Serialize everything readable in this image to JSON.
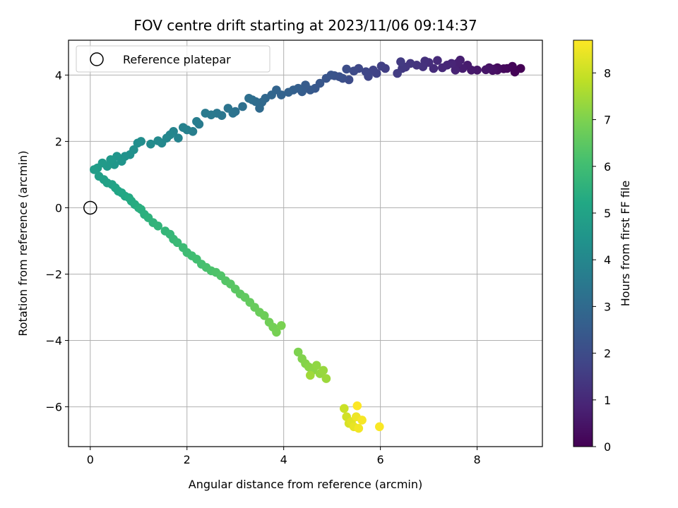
{
  "chart_data": {
    "type": "scatter",
    "title": "FOV centre drift starting at 2023/11/06 09:14:37",
    "xlabel": "Angular distance from reference (arcmin)",
    "ylabel": "Rotation from reference (arcmin)",
    "xlim": [
      -0.45,
      9.35
    ],
    "ylim": [
      -7.2,
      5.05
    ],
    "xticks": [
      0,
      2,
      4,
      6,
      8
    ],
    "yticks": [
      -6,
      -4,
      -2,
      0,
      2,
      4
    ],
    "grid": true,
    "legend": {
      "placement": "upper-left",
      "entries": [
        "Reference platepar"
      ]
    },
    "reference_point": {
      "x": 0,
      "y": 0,
      "label": "Reference platepar"
    },
    "colorbar": {
      "label": "Hours from first FF file",
      "colormap": "viridis",
      "range": [
        0,
        8.7
      ],
      "ticks": [
        0,
        1,
        2,
        3,
        4,
        5,
        6,
        7,
        8
      ]
    },
    "series": [
      {
        "points": [
          [
            8.9,
            4.2,
            0.0
          ],
          [
            8.78,
            4.09,
            0.05
          ],
          [
            8.73,
            4.26,
            0.1
          ],
          [
            8.62,
            4.2,
            0.15
          ],
          [
            8.55,
            4.19,
            0.2
          ],
          [
            8.42,
            4.22,
            0.25
          ],
          [
            8.42,
            4.15,
            0.3
          ],
          [
            8.35,
            4.18,
            0.35
          ],
          [
            8.32,
            4.14,
            0.4
          ],
          [
            8.25,
            4.22,
            0.45
          ],
          [
            8.18,
            4.16,
            0.5
          ],
          [
            8.0,
            4.15,
            0.55
          ],
          [
            7.88,
            4.15,
            0.6
          ],
          [
            7.8,
            4.3,
            0.65
          ],
          [
            7.7,
            4.2,
            0.7
          ],
          [
            7.65,
            4.45,
            0.75
          ],
          [
            7.6,
            4.36,
            0.8
          ],
          [
            7.55,
            4.15,
            0.85
          ],
          [
            7.47,
            4.35,
            0.9
          ],
          [
            7.38,
            4.3,
            0.95
          ],
          [
            7.28,
            4.22,
            1.0
          ],
          [
            7.18,
            4.44,
            1.05
          ],
          [
            7.1,
            4.2,
            1.1
          ],
          [
            7.0,
            4.38,
            1.15
          ],
          [
            6.92,
            4.42,
            1.2
          ],
          [
            6.88,
            4.25,
            1.25
          ],
          [
            6.75,
            4.3,
            1.3
          ],
          [
            6.62,
            4.35,
            1.35
          ],
          [
            6.52,
            4.24,
            1.4
          ],
          [
            6.45,
            4.2,
            1.45
          ],
          [
            6.42,
            4.4,
            1.5
          ],
          [
            6.35,
            4.05,
            1.55
          ],
          [
            6.1,
            4.2,
            1.6
          ],
          [
            6.02,
            4.27,
            1.65
          ],
          [
            5.92,
            4.05,
            1.7
          ],
          [
            5.85,
            4.15,
            1.75
          ],
          [
            5.75,
            3.96,
            1.8
          ],
          [
            5.7,
            4.1,
            1.85
          ],
          [
            5.55,
            4.2,
            1.9
          ],
          [
            5.45,
            4.12,
            1.95
          ],
          [
            5.35,
            3.86,
            2.0
          ],
          [
            5.3,
            4.18,
            2.05
          ],
          [
            5.22,
            3.9,
            2.1
          ],
          [
            5.15,
            3.95,
            2.15
          ],
          [
            5.05,
            3.98,
            2.2
          ],
          [
            4.98,
            4.0,
            2.25
          ],
          [
            4.88,
            3.9,
            2.3
          ],
          [
            4.75,
            3.75,
            2.35
          ],
          [
            4.65,
            3.6,
            2.4
          ],
          [
            4.55,
            3.55,
            2.45
          ],
          [
            4.45,
            3.7,
            2.5
          ],
          [
            4.38,
            3.5,
            2.55
          ],
          [
            4.3,
            3.6,
            2.6
          ],
          [
            4.2,
            3.55,
            2.65
          ],
          [
            4.1,
            3.48,
            2.7
          ],
          [
            3.95,
            3.4,
            2.75
          ],
          [
            3.85,
            3.55,
            2.8
          ],
          [
            3.75,
            3.4,
            2.85
          ],
          [
            3.62,
            3.3,
            2.9
          ],
          [
            3.55,
            3.18,
            2.95
          ],
          [
            3.5,
            3.0,
            3.0
          ],
          [
            3.42,
            3.2,
            3.05
          ],
          [
            3.35,
            3.25,
            3.1
          ],
          [
            3.28,
            3.3,
            3.15
          ],
          [
            3.15,
            3.05,
            3.2
          ],
          [
            3.0,
            2.9,
            3.25
          ],
          [
            2.95,
            2.85,
            3.3
          ],
          [
            2.85,
            3.0,
            3.35
          ],
          [
            2.72,
            2.78,
            3.4
          ],
          [
            2.62,
            2.85,
            3.45
          ],
          [
            2.5,
            2.8,
            3.5
          ],
          [
            2.38,
            2.85,
            3.55
          ],
          [
            2.25,
            2.52,
            3.6
          ],
          [
            2.2,
            2.6,
            3.65
          ],
          [
            2.12,
            2.3,
            3.7
          ],
          [
            2.0,
            2.35,
            3.75
          ],
          [
            1.92,
            2.42,
            3.8
          ],
          [
            1.82,
            2.1,
            3.85
          ],
          [
            1.72,
            2.3,
            3.9
          ],
          [
            1.65,
            2.2,
            3.95
          ],
          [
            1.58,
            2.1,
            4.0
          ],
          [
            1.48,
            1.95,
            4.05
          ],
          [
            1.4,
            2.02,
            4.1
          ],
          [
            1.25,
            1.92,
            4.15
          ],
          [
            1.05,
            2.0,
            4.2
          ],
          [
            0.98,
            1.95,
            4.25
          ],
          [
            0.9,
            1.75,
            4.3
          ],
          [
            0.82,
            1.6,
            4.35
          ],
          [
            0.72,
            1.55,
            4.4
          ],
          [
            0.65,
            1.4,
            4.45
          ],
          [
            0.55,
            1.55,
            4.5
          ],
          [
            0.5,
            1.3,
            4.55
          ],
          [
            0.42,
            1.45,
            4.6
          ],
          [
            0.35,
            1.25,
            4.65
          ],
          [
            0.25,
            1.35,
            4.7
          ],
          [
            0.15,
            1.2,
            4.75
          ],
          [
            0.08,
            1.15,
            4.8
          ],
          [
            0.18,
            0.95,
            4.85
          ],
          [
            0.28,
            0.85,
            4.9
          ],
          [
            0.35,
            0.75,
            4.95
          ],
          [
            0.45,
            0.7,
            5.0
          ],
          [
            0.52,
            0.6,
            5.05
          ],
          [
            0.58,
            0.5,
            5.1
          ],
          [
            0.65,
            0.45,
            5.15
          ],
          [
            0.72,
            0.35,
            5.2
          ],
          [
            0.8,
            0.3,
            5.25
          ],
          [
            0.85,
            0.2,
            5.3
          ],
          [
            0.92,
            0.1,
            5.35
          ],
          [
            1.0,
            0.0,
            5.4
          ],
          [
            1.05,
            -0.05,
            5.45
          ],
          [
            1.12,
            -0.2,
            5.5
          ],
          [
            1.2,
            -0.3,
            5.55
          ],
          [
            1.3,
            -0.45,
            5.6
          ],
          [
            1.4,
            -0.55,
            5.65
          ],
          [
            1.55,
            -0.7,
            5.7
          ],
          [
            1.65,
            -0.8,
            5.75
          ],
          [
            1.72,
            -0.95,
            5.8
          ],
          [
            1.8,
            -1.05,
            5.85
          ],
          [
            1.92,
            -1.2,
            5.9
          ],
          [
            2.0,
            -1.35,
            5.95
          ],
          [
            2.1,
            -1.45,
            6.0
          ],
          [
            2.2,
            -1.55,
            6.05
          ],
          [
            2.3,
            -1.7,
            6.1
          ],
          [
            2.4,
            -1.8,
            6.15
          ],
          [
            2.5,
            -1.9,
            6.2
          ],
          [
            2.6,
            -1.95,
            6.25
          ],
          [
            2.7,
            -2.05,
            6.3
          ],
          [
            2.8,
            -2.2,
            6.35
          ],
          [
            2.9,
            -2.3,
            6.4
          ],
          [
            3.0,
            -2.45,
            6.45
          ],
          [
            3.1,
            -2.6,
            6.5
          ],
          [
            3.2,
            -2.7,
            6.55
          ],
          [
            3.3,
            -2.85,
            6.6
          ],
          [
            3.4,
            -3.0,
            6.65
          ],
          [
            3.5,
            -3.15,
            6.7
          ],
          [
            3.6,
            -3.25,
            6.75
          ],
          [
            3.7,
            -3.45,
            6.8
          ],
          [
            3.78,
            -3.6,
            6.85
          ],
          [
            3.85,
            -3.75,
            6.9
          ],
          [
            3.95,
            -3.55,
            6.95
          ],
          [
            4.3,
            -4.35,
            7.0
          ],
          [
            4.38,
            -4.55,
            7.05
          ],
          [
            4.45,
            -4.7,
            7.1
          ],
          [
            4.52,
            -4.8,
            7.15
          ],
          [
            4.6,
            -4.9,
            7.2
          ],
          [
            4.68,
            -4.75,
            7.25
          ],
          [
            4.75,
            -5.0,
            7.3
          ],
          [
            4.82,
            -4.9,
            7.35
          ],
          [
            4.88,
            -5.15,
            7.4
          ],
          [
            4.55,
            -5.05,
            7.45
          ],
          [
            5.25,
            -6.05,
            8.0
          ],
          [
            5.3,
            -6.3,
            8.1
          ],
          [
            5.35,
            -6.5,
            8.2
          ],
          [
            5.4,
            -6.45,
            8.3
          ],
          [
            5.45,
            -6.6,
            8.4
          ],
          [
            5.5,
            -6.3,
            8.5
          ],
          [
            5.55,
            -6.65,
            8.55
          ],
          [
            5.62,
            -6.4,
            8.6
          ],
          [
            5.98,
            -6.6,
            8.65
          ],
          [
            5.52,
            -5.97,
            8.7
          ]
        ]
      }
    ]
  }
}
